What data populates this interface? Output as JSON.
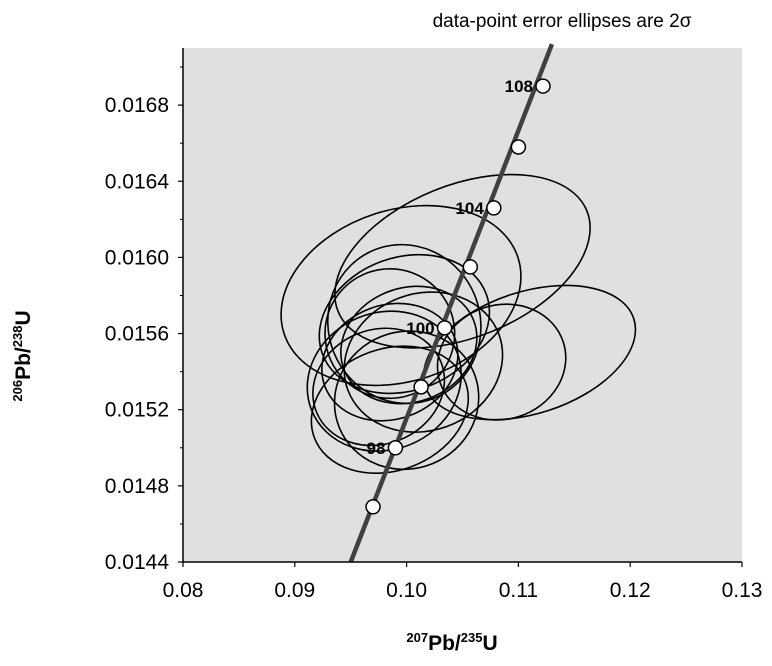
{
  "chart_data": {
    "type": "scatter",
    "annotation": {
      "text": "data-point error ellipses are 2",
      "sigma": "σ"
    },
    "xlabel": {
      "sup": "207",
      "main": "Pb/",
      "sup2": "235",
      "main2": "U"
    },
    "ylabel": {
      "sup": "206",
      "main": "Pb/",
      "sup2": "238",
      "main2": "U"
    },
    "xlim": [
      0.08,
      0.13
    ],
    "ylim": [
      0.0144,
      0.0171
    ],
    "x_ticks": [
      {
        "value": 0.08,
        "label": "0.08"
      },
      {
        "value": 0.09,
        "label": "0.09"
      },
      {
        "value": 0.1,
        "label": "0.10"
      },
      {
        "value": 0.11,
        "label": "0.11"
      },
      {
        "value": 0.12,
        "label": "0.12"
      },
      {
        "value": 0.13,
        "label": "0.13"
      }
    ],
    "y_ticks": [
      {
        "value": 0.0144,
        "label": "0.0144"
      },
      {
        "value": 0.0148,
        "label": "0.0148"
      },
      {
        "value": 0.0152,
        "label": "0.0152"
      },
      {
        "value": 0.0156,
        "label": "0.0156"
      },
      {
        "value": 0.016,
        "label": "0.0160"
      },
      {
        "value": 0.0164,
        "label": "0.0164"
      },
      {
        "value": 0.0168,
        "label": "0.0168"
      }
    ],
    "grid": false,
    "plot_background": "#e0e0e0",
    "concordia": {
      "color": "#404040",
      "line": [
        [
          0.095,
          0.0144
        ],
        [
          0.113,
          0.01712
        ]
      ],
      "age_markers": [
        {
          "x": 0.097,
          "y": 0.01469,
          "label": ""
        },
        {
          "x": 0.099,
          "y": 0.015,
          "label": "98"
        },
        {
          "x": 0.1013,
          "y": 0.01532,
          "label": ""
        },
        {
          "x": 0.1034,
          "y": 0.01563,
          "label": "100"
        },
        {
          "x": 0.1057,
          "y": 0.01595,
          "label": ""
        },
        {
          "x": 0.1078,
          "y": 0.01626,
          "label": "104"
        },
        {
          "x": 0.11,
          "y": 0.01658,
          "label": ""
        },
        {
          "x": 0.1122,
          "y": 0.0169,
          "label": "108"
        }
      ]
    },
    "ellipses": [
      {
        "cx": 0.105,
        "cy": 0.01598,
        "rx": 0.012,
        "ry": 0.0004,
        "angle": -22
      },
      {
        "cx": 0.0995,
        "cy": 0.0158,
        "rx": 0.011,
        "ry": 0.00045,
        "angle": -18
      },
      {
        "cx": 0.0998,
        "cy": 0.01565,
        "rx": 0.0078,
        "ry": 0.00035,
        "angle": -20
      },
      {
        "cx": 0.0985,
        "cy": 0.0156,
        "rx": 0.0058,
        "ry": 0.00034,
        "angle": -24
      },
      {
        "cx": 0.1002,
        "cy": 0.01554,
        "rx": 0.0062,
        "ry": 0.0003,
        "angle": -20
      },
      {
        "cx": 0.0985,
        "cy": 0.01545,
        "rx": 0.0062,
        "ry": 0.0003,
        "angle": -20
      },
      {
        "cx": 0.098,
        "cy": 0.01535,
        "rx": 0.007,
        "ry": 0.00036,
        "angle": -22
      },
      {
        "cx": 0.0975,
        "cy": 0.01532,
        "rx": 0.006,
        "ry": 0.0003,
        "angle": -22
      },
      {
        "cx": 0.0985,
        "cy": 0.0152,
        "rx": 0.0072,
        "ry": 0.00032,
        "angle": -20
      },
      {
        "cx": 0.1,
        "cy": 0.01525,
        "rx": 0.0065,
        "ry": 0.00036,
        "angle": -22
      },
      {
        "cx": 0.1015,
        "cy": 0.01545,
        "rx": 0.0072,
        "ry": 0.00036,
        "angle": -20
      },
      {
        "cx": 0.0998,
        "cy": 0.01565,
        "rx": 0.0068,
        "ry": 0.00042,
        "angle": -22
      },
      {
        "cx": 0.1085,
        "cy": 0.01545,
        "rx": 0.0058,
        "ry": 0.0003,
        "angle": -18
      },
      {
        "cx": 0.111,
        "cy": 0.0155,
        "rx": 0.0098,
        "ry": 0.00032,
        "angle": -18
      }
    ]
  }
}
